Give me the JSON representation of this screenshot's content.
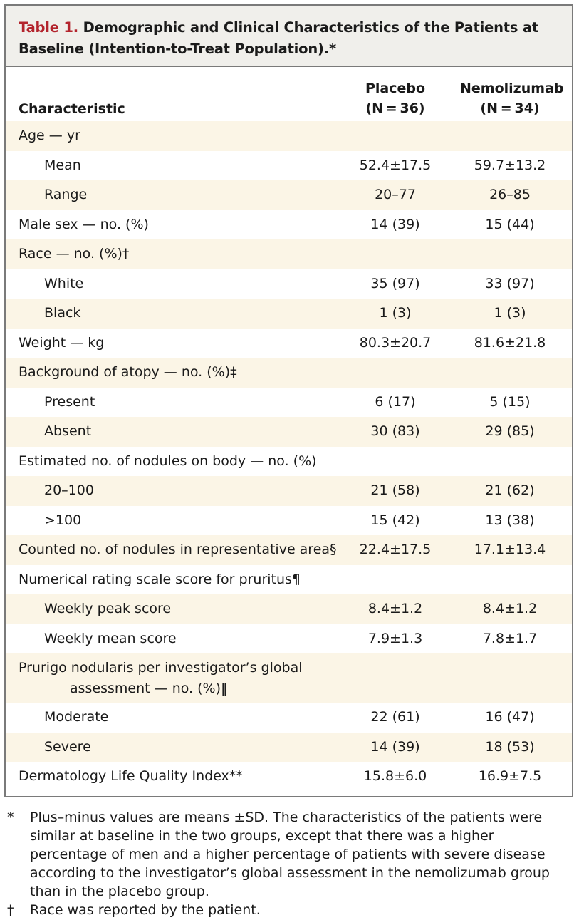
{
  "table": {
    "title_label": "Table 1.",
    "title_text": " Demographic and Clinical Characteristics of the Patients at Baseline (Intention-to-Treat Population).*",
    "header": {
      "characteristic": "Characteristic",
      "placebo_line1": "Placebo",
      "placebo_line2": "(N = 36)",
      "nemo_line1": "Nemolizumab",
      "nemo_line2": "(N = 34)"
    },
    "rows": [
      {
        "label": "Age — yr",
        "placebo": "",
        "nemo": ""
      },
      {
        "label": "Mean",
        "placebo": "52.4±17.5",
        "nemo": "59.7±13.2"
      },
      {
        "label": "Range",
        "placebo": "20–77",
        "nemo": "26–85"
      },
      {
        "label": "Male sex — no. (%)",
        "placebo": "14 (39)",
        "nemo": "15 (44)"
      },
      {
        "label": "Race — no. (%)†",
        "placebo": "",
        "nemo": ""
      },
      {
        "label": "White",
        "placebo": "35 (97)",
        "nemo": "33 (97)"
      },
      {
        "label": "Black",
        "placebo": "1 (3)",
        "nemo": "1 (3)"
      },
      {
        "label": "Weight — kg",
        "placebo": "80.3±20.7",
        "nemo": "81.6±21.8"
      },
      {
        "label": "Background of atopy — no. (%)‡",
        "placebo": "",
        "nemo": ""
      },
      {
        "label": "Present",
        "placebo": "6 (17)",
        "nemo": "5 (15)"
      },
      {
        "label": "Absent",
        "placebo": "30 (83)",
        "nemo": "29 (85)"
      },
      {
        "label": "Estimated no. of nodules on body — no. (%)",
        "placebo": "",
        "nemo": ""
      },
      {
        "label": "20–100",
        "placebo": "21 (58)",
        "nemo": "21 (62)"
      },
      {
        "label": ">100",
        "placebo": "15 (42)",
        "nemo": "13 (38)"
      },
      {
        "label": "Counted no. of nodules in representative area§",
        "placebo": "22.4±17.5",
        "nemo": "17.1±13.4"
      },
      {
        "label": "Numerical rating scale score for pruritus¶",
        "placebo": "",
        "nemo": ""
      },
      {
        "label": "Weekly peak score",
        "placebo": "8.4±1.2",
        "nemo": "8.4±1.2"
      },
      {
        "label": "Weekly mean score",
        "placebo": "7.9±1.3",
        "nemo": "7.8±1.7"
      },
      {
        "label": "Prurigo nodularis per investigator’s global",
        "label2": "assessment — no. (%)‖",
        "placebo": "",
        "nemo": ""
      },
      {
        "label": "Moderate",
        "placebo": "22 (61)",
        "nemo": "16 (47)"
      },
      {
        "label": "Severe",
        "placebo": "14 (39)",
        "nemo": "18 (53)"
      },
      {
        "label": "Dermatology Life Quality Index**",
        "placebo": "15.8±6.0",
        "nemo": "16.9±7.5"
      }
    ]
  },
  "notes": [
    {
      "mark": "*",
      "text": "Plus–minus values are means ±SD. The characteristics of the patients were similar at baseline in the two groups, except that there was a higher percentage of men and a higher percentage of patients with severe disease according to the investigator’s global assessment in the nemolizumab group than in the placebo group."
    },
    {
      "mark": "†",
      "text": "Race was reported by the patient."
    }
  ]
}
